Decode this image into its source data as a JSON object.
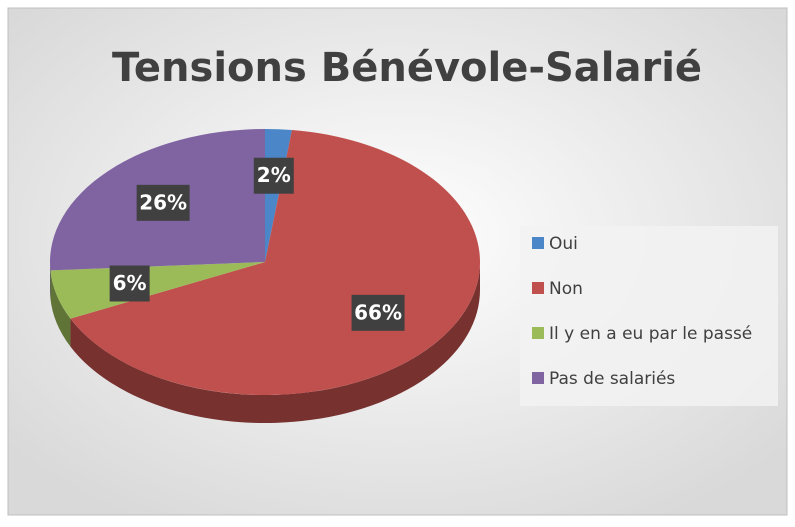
{
  "chart_data": {
    "type": "pie",
    "title": "Tensions Bénévole-Salarié",
    "categories": [
      "Oui",
      "Non",
      "Il y en a eu par le passé",
      "Pas de salariés"
    ],
    "values": [
      2,
      66,
      6,
      26
    ],
    "value_labels": [
      "2%",
      "66%",
      "6%",
      "26%"
    ],
    "colors": [
      "#4a86c8",
      "#c0504d",
      "#9bbb59",
      "#8064a2"
    ],
    "legend": "right"
  }
}
